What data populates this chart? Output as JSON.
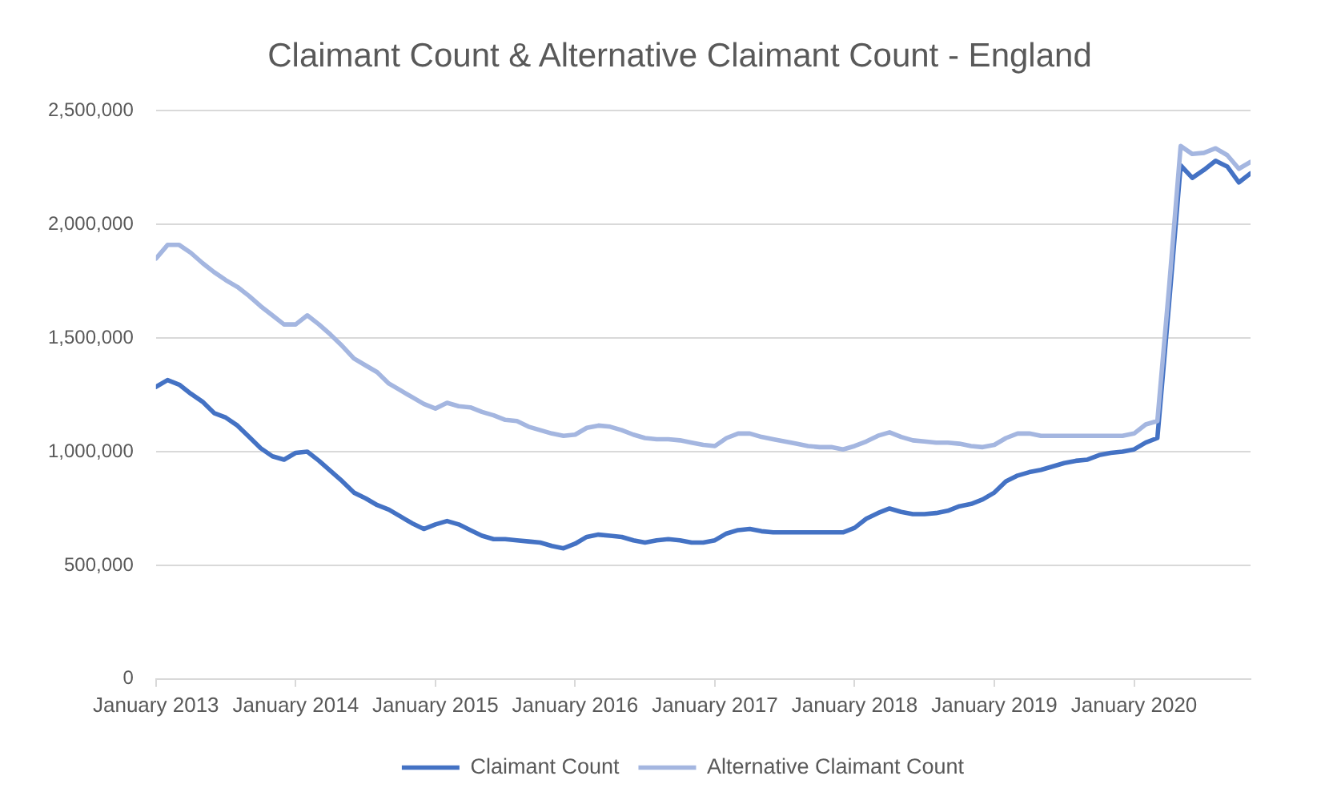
{
  "chart_data": {
    "type": "line",
    "title": "Claimant Count & Alternative Claimant Count - England",
    "x": [
      "2013-01",
      "2013-02",
      "2013-03",
      "2013-04",
      "2013-05",
      "2013-06",
      "2013-07",
      "2013-08",
      "2013-09",
      "2013-10",
      "2013-11",
      "2013-12",
      "2014-01",
      "2014-02",
      "2014-03",
      "2014-04",
      "2014-05",
      "2014-06",
      "2014-07",
      "2014-08",
      "2014-09",
      "2014-10",
      "2014-11",
      "2014-12",
      "2015-01",
      "2015-02",
      "2015-03",
      "2015-04",
      "2015-05",
      "2015-06",
      "2015-07",
      "2015-08",
      "2015-09",
      "2015-10",
      "2015-11",
      "2015-12",
      "2016-01",
      "2016-02",
      "2016-03",
      "2016-04",
      "2016-05",
      "2016-06",
      "2016-07",
      "2016-08",
      "2016-09",
      "2016-10",
      "2016-11",
      "2016-12",
      "2017-01",
      "2017-02",
      "2017-03",
      "2017-04",
      "2017-05",
      "2017-06",
      "2017-07",
      "2017-08",
      "2017-09",
      "2017-10",
      "2017-11",
      "2017-12",
      "2018-01",
      "2018-02",
      "2018-03",
      "2018-04",
      "2018-05",
      "2018-06",
      "2018-07",
      "2018-08",
      "2018-09",
      "2018-10",
      "2018-11",
      "2018-12",
      "2019-01",
      "2019-02",
      "2019-03",
      "2019-04",
      "2019-05",
      "2019-06",
      "2019-07",
      "2019-08",
      "2019-09",
      "2019-10",
      "2019-11",
      "2019-12",
      "2020-01",
      "2020-02",
      "2020-03",
      "2020-04",
      "2020-05",
      "2020-06",
      "2020-07",
      "2020-08",
      "2020-09",
      "2020-10",
      "2020-11"
    ],
    "series": [
      {
        "name": "Claimant Count",
        "color": "#4472c4",
        "values": [
          1285000,
          1315000,
          1295000,
          1255000,
          1220000,
          1170000,
          1150000,
          1115000,
          1065000,
          1015000,
          980000,
          965000,
          995000,
          1000000,
          960000,
          915000,
          870000,
          820000,
          795000,
          765000,
          745000,
          715000,
          685000,
          660000,
          680000,
          695000,
          680000,
          655000,
          630000,
          615000,
          615000,
          610000,
          605000,
          600000,
          585000,
          575000,
          595000,
          625000,
          635000,
          630000,
          625000,
          610000,
          600000,
          610000,
          615000,
          610000,
          600000,
          600000,
          610000,
          640000,
          655000,
          660000,
          650000,
          645000,
          645000,
          645000,
          645000,
          645000,
          645000,
          645000,
          665000,
          705000,
          730000,
          750000,
          735000,
          725000,
          725000,
          730000,
          740000,
          760000,
          770000,
          790000,
          820000,
          870000,
          895000,
          910000,
          920000,
          935000,
          950000,
          960000,
          965000,
          985000,
          995000,
          1000000,
          1010000,
          1040000,
          1060000,
          1650000,
          2260000,
          2205000,
          2240000,
          2280000,
          2255000,
          2185000,
          2225000
        ]
      },
      {
        "name": "Alternative Claimant Count",
        "color": "#a4b6e0",
        "values": [
          1850000,
          1910000,
          1910000,
          1875000,
          1830000,
          1790000,
          1755000,
          1725000,
          1685000,
          1640000,
          1600000,
          1560000,
          1560000,
          1600000,
          1560000,
          1515000,
          1465000,
          1410000,
          1380000,
          1350000,
          1300000,
          1270000,
          1240000,
          1210000,
          1190000,
          1215000,
          1200000,
          1195000,
          1175000,
          1160000,
          1140000,
          1135000,
          1110000,
          1095000,
          1080000,
          1070000,
          1075000,
          1105000,
          1115000,
          1110000,
          1095000,
          1075000,
          1060000,
          1055000,
          1055000,
          1050000,
          1040000,
          1030000,
          1025000,
          1060000,
          1080000,
          1080000,
          1065000,
          1055000,
          1045000,
          1035000,
          1025000,
          1020000,
          1020000,
          1010000,
          1025000,
          1045000,
          1070000,
          1085000,
          1065000,
          1050000,
          1045000,
          1040000,
          1040000,
          1035000,
          1025000,
          1020000,
          1030000,
          1060000,
          1080000,
          1080000,
          1070000,
          1070000,
          1070000,
          1070000,
          1070000,
          1070000,
          1070000,
          1070000,
          1080000,
          1120000,
          1135000,
          1720000,
          2345000,
          2310000,
          2315000,
          2335000,
          2305000,
          2245000,
          2275000
        ]
      }
    ],
    "xlim": [
      "2013-01",
      "2020-11"
    ],
    "xticks": [
      {
        "value": "2013-01",
        "label": "January 2013"
      },
      {
        "value": "2014-01",
        "label": "January 2014"
      },
      {
        "value": "2015-01",
        "label": "January 2015"
      },
      {
        "value": "2016-01",
        "label": "January 2016"
      },
      {
        "value": "2017-01",
        "label": "January 2017"
      },
      {
        "value": "2018-01",
        "label": "January 2018"
      },
      {
        "value": "2019-01",
        "label": "January 2019"
      },
      {
        "value": "2020-01",
        "label": "January 2020"
      }
    ],
    "ylim": [
      0,
      2500000
    ],
    "yticks": [
      0,
      {
        "value": 500000,
        "label": "500,000"
      },
      {
        "value": 1000000,
        "label": "1,000,000"
      },
      {
        "value": 1500000,
        "label": "1,500,000"
      },
      {
        "value": 2000000,
        "label": "2,000,000"
      },
      {
        "value": 2500000,
        "label": "2,500,000"
      }
    ],
    "grid": "y",
    "legend": "bottom",
    "marker": "none"
  }
}
